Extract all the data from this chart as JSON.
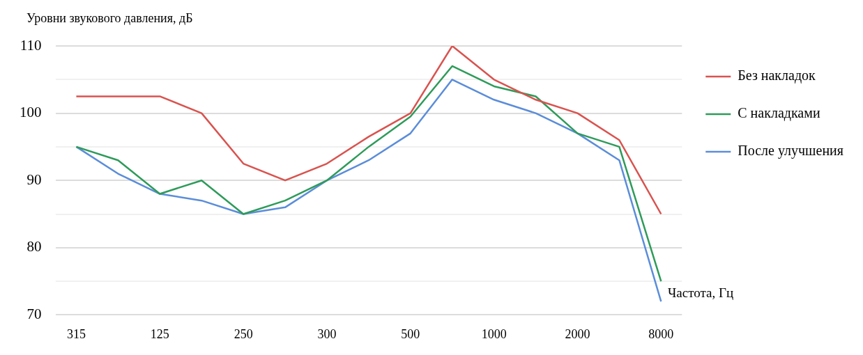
{
  "chart_data": {
    "type": "line",
    "ylabel": "Уровни звукового давления, дБ",
    "xlabel": "Частота, Гц",
    "categories": [
      "315",
      null,
      "125",
      null,
      "250",
      null,
      "300",
      null,
      "500",
      null,
      "1000",
      null,
      "2000",
      null,
      "8000"
    ],
    "series": [
      {
        "name": "Без накладок",
        "color": "#d9534f",
        "values": [
          102.5,
          102.5,
          102.5,
          100,
          92.5,
          90,
          92.5,
          96.5,
          100,
          110,
          105,
          102,
          100,
          96,
          85
        ]
      },
      {
        "name": "С накладками",
        "color": "#2e9b5a",
        "values": [
          95,
          93,
          88,
          90,
          85,
          87,
          90,
          95,
          99.5,
          107,
          104,
          102.5,
          97,
          95,
          75
        ]
      },
      {
        "name": "После улучшения",
        "color": "#5b8dd9",
        "values": [
          95,
          91,
          88,
          87,
          85,
          86,
          90,
          93,
          97,
          105,
          102,
          100,
          97,
          93,
          72
        ]
      }
    ],
    "ylim": [
      70,
      110
    ],
    "yticks": [
      70,
      {
        "value": 75,
        "label": null
      },
      80,
      {
        "value": 85,
        "label": null
      },
      90,
      {
        "value": 95,
        "label": null
      },
      100,
      {
        "value": 105,
        "label": null
      },
      110
    ],
    "grid": "y",
    "legend": "top right",
    "marker": "none",
    "line_style": "solid"
  }
}
